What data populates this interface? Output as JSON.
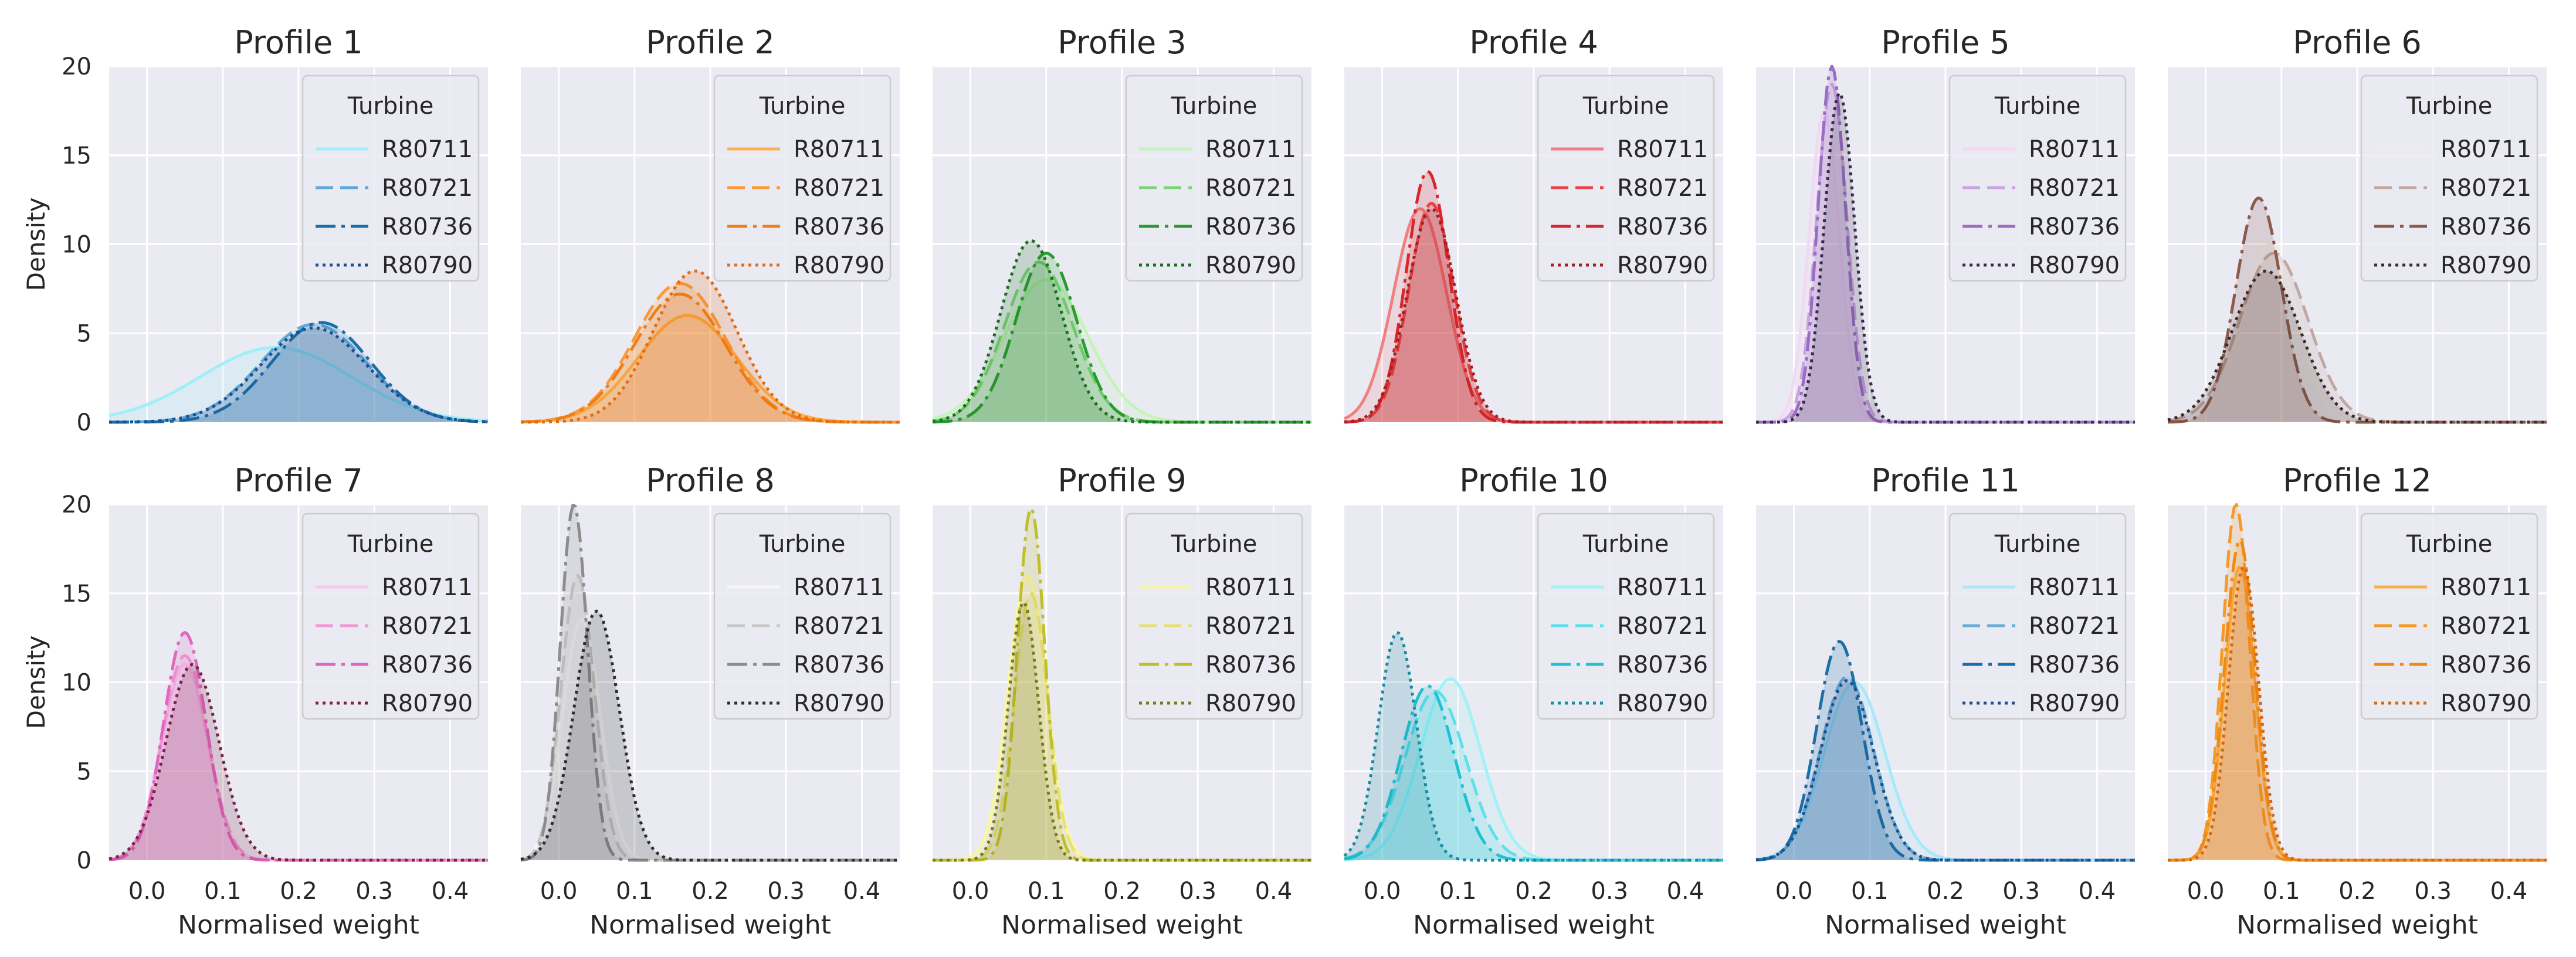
{
  "chart_data": {
    "type": "kde-grid",
    "x_ticks": [
      "0.0",
      "0.1",
      "0.2",
      "0.3",
      "0.4"
    ],
    "y_ticks": [
      "0",
      "5",
      "10",
      "15",
      "20"
    ],
    "xlim": [
      -0.05,
      0.45
    ],
    "ylim": [
      0,
      20
    ],
    "xlabel": "Normalised weight",
    "ylabel": "Density",
    "legend_title": "Turbine",
    "turbines": [
      "R80711",
      "R80721",
      "R80736",
      "R80790"
    ],
    "panels": [
      {
        "title": "Profile 1",
        "colors": [
          "#9ef0f8",
          "#5fa9d6",
          "#1b6fa8",
          "#1f4e8c"
        ],
        "curves": [
          {
            "mu": 0.17,
            "sigma": 0.1,
            "peak": 4.2
          },
          {
            "mu": 0.22,
            "sigma": 0.07,
            "peak": 5.5
          },
          {
            "mu": 0.23,
            "sigma": 0.065,
            "peak": 5.6
          },
          {
            "mu": 0.22,
            "sigma": 0.07,
            "peak": 5.3
          }
        ]
      },
      {
        "title": "Profile 2",
        "colors": [
          "#fdb14e",
          "#fb9a3a",
          "#f07e16",
          "#e66b0e"
        ],
        "curves": [
          {
            "mu": 0.17,
            "sigma": 0.065,
            "peak": 6.0
          },
          {
            "mu": 0.16,
            "sigma": 0.06,
            "peak": 7.8
          },
          {
            "mu": 0.16,
            "sigma": 0.06,
            "peak": 7.2
          },
          {
            "mu": 0.18,
            "sigma": 0.055,
            "peak": 8.5
          }
        ]
      },
      {
        "title": "Profile 3",
        "colors": [
          "#c4f5b8",
          "#7ed47a",
          "#2a9c2f",
          "#1b6f1f"
        ],
        "curves": [
          {
            "mu": 0.1,
            "sigma": 0.055,
            "peak": 8.0
          },
          {
            "mu": 0.09,
            "sigma": 0.045,
            "peak": 9.0
          },
          {
            "mu": 0.1,
            "sigma": 0.04,
            "peak": 9.5
          },
          {
            "mu": 0.08,
            "sigma": 0.04,
            "peak": 10.2
          }
        ]
      },
      {
        "title": "Profile 4",
        "colors": [
          "#f08080",
          "#e8484c",
          "#d8262c",
          "#a51e22"
        ],
        "curves": [
          {
            "mu": 0.05,
            "sigma": 0.035,
            "peak": 12.0
          },
          {
            "mu": 0.065,
            "sigma": 0.03,
            "peak": 12.3
          },
          {
            "mu": 0.06,
            "sigma": 0.028,
            "peak": 14.1
          },
          {
            "mu": 0.065,
            "sigma": 0.032,
            "peak": 12.0
          }
        ]
      },
      {
        "title": "Profile 5",
        "colors": [
          "#f2d8f4",
          "#c8a5e0",
          "#9a6cc4",
          "#3a2a4a"
        ],
        "curves": [
          {
            "mu": 0.04,
            "sigma": 0.02,
            "peak": 17.5
          },
          {
            "mu": 0.05,
            "sigma": 0.02,
            "peak": 19.0
          },
          {
            "mu": 0.05,
            "sigma": 0.018,
            "peak": 20.0
          },
          {
            "mu": 0.06,
            "sigma": 0.02,
            "peak": 18.5
          }
        ]
      },
      {
        "title": "Profile 6",
        "colors": [
          "#f0ece8",
          "#c2a8a0",
          "#8c5a4c",
          "#3e2a26"
        ],
        "curves": [
          {
            "mu": 0.085,
            "sigma": 0.035,
            "peak": 10.0
          },
          {
            "mu": 0.09,
            "sigma": 0.045,
            "peak": 9.5
          },
          {
            "mu": 0.07,
            "sigma": 0.03,
            "peak": 12.6
          },
          {
            "mu": 0.08,
            "sigma": 0.045,
            "peak": 8.5
          }
        ]
      },
      {
        "title": "Profile 7",
        "colors": [
          "#f7c8ec",
          "#ef9ad6",
          "#e066bf",
          "#7a2148"
        ],
        "curves": [
          {
            "mu": 0.05,
            "sigma": 0.03,
            "peak": 11.0
          },
          {
            "mu": 0.05,
            "sigma": 0.03,
            "peak": 11.5
          },
          {
            "mu": 0.05,
            "sigma": 0.028,
            "peak": 12.8
          },
          {
            "mu": 0.06,
            "sigma": 0.035,
            "peak": 11.0
          }
        ]
      },
      {
        "title": "Profile 8",
        "colors": [
          "#f5f5f5",
          "#c8c8c8",
          "#8c8c8c",
          "#2e2e2e"
        ],
        "curves": [
          {
            "mu": 0.03,
            "sigma": 0.025,
            "peak": 13.5
          },
          {
            "mu": 0.025,
            "sigma": 0.022,
            "peak": 16.0
          },
          {
            "mu": 0.02,
            "sigma": 0.018,
            "peak": 20.0
          },
          {
            "mu": 0.05,
            "sigma": 0.03,
            "peak": 14.0
          }
        ]
      },
      {
        "title": "Profile 9",
        "colors": [
          "#faf6a0",
          "#e4e07a",
          "#c0bf2a",
          "#7a7a1a"
        ],
        "curves": [
          {
            "mu": 0.075,
            "sigma": 0.025,
            "peak": 16.0
          },
          {
            "mu": 0.08,
            "sigma": 0.022,
            "peak": 15.0
          },
          {
            "mu": 0.08,
            "sigma": 0.018,
            "peak": 19.8
          },
          {
            "mu": 0.07,
            "sigma": 0.02,
            "peak": 14.5
          }
        ]
      },
      {
        "title": "Profile 10",
        "colors": [
          "#9ff3f6",
          "#5ee0ea",
          "#1fc2d4",
          "#168c9e"
        ],
        "curves": [
          {
            "mu": 0.09,
            "sigma": 0.04,
            "peak": 10.2
          },
          {
            "mu": 0.07,
            "sigma": 0.04,
            "peak": 9.5
          },
          {
            "mu": 0.06,
            "sigma": 0.035,
            "peak": 9.8
          },
          {
            "mu": 0.02,
            "sigma": 0.025,
            "peak": 12.8
          }
        ]
      },
      {
        "title": "Profile 11",
        "colors": [
          "#a9e8fb",
          "#6aaed8",
          "#1b6fa8",
          "#1f4e8c"
        ],
        "curves": [
          {
            "mu": 0.08,
            "sigma": 0.04,
            "peak": 10.0
          },
          {
            "mu": 0.07,
            "sigma": 0.035,
            "peak": 10.3
          },
          {
            "mu": 0.06,
            "sigma": 0.03,
            "peak": 12.3
          },
          {
            "mu": 0.07,
            "sigma": 0.035,
            "peak": 10.1
          }
        ]
      },
      {
        "title": "Profile 12",
        "colors": [
          "#f8b04a",
          "#f59a28",
          "#ef8a14",
          "#d9660a"
        ],
        "curves": [
          {
            "mu": 0.045,
            "sigma": 0.02,
            "peak": 16.5
          },
          {
            "mu": 0.04,
            "sigma": 0.018,
            "peak": 20.0
          },
          {
            "mu": 0.045,
            "sigma": 0.02,
            "peak": 18.0
          },
          {
            "mu": 0.05,
            "sigma": 0.02,
            "peak": 16.5
          }
        ]
      }
    ]
  }
}
